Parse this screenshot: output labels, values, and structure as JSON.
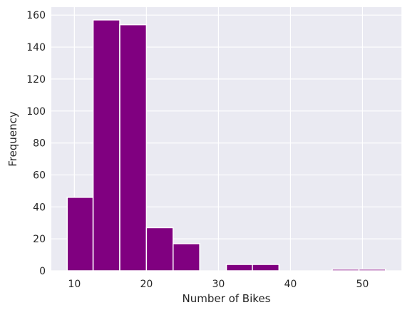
{
  "chart_data": {
    "type": "bar",
    "histogram": true,
    "title": "",
    "xlabel": "Number of Bikes",
    "ylabel": "Frequency",
    "bins": [
      {
        "start": 9.0,
        "end": 12.6,
        "value": 46
      },
      {
        "start": 12.6,
        "end": 16.3,
        "value": 157
      },
      {
        "start": 16.3,
        "end": 20.0,
        "value": 154
      },
      {
        "start": 20.0,
        "end": 23.7,
        "value": 27
      },
      {
        "start": 23.7,
        "end": 27.4,
        "value": 17
      },
      {
        "start": 27.4,
        "end": 31.1,
        "value": 0
      },
      {
        "start": 31.1,
        "end": 34.7,
        "value": 4
      },
      {
        "start": 34.7,
        "end": 38.4,
        "value": 4
      },
      {
        "start": 38.4,
        "end": 42.1,
        "value": 0
      },
      {
        "start": 42.1,
        "end": 45.8,
        "value": 0
      },
      {
        "start": 45.8,
        "end": 49.5,
        "value": 1
      },
      {
        "start": 49.5,
        "end": 53.2,
        "value": 1
      }
    ],
    "xlim": [
      6.8,
      55.4
    ],
    "ylim": [
      0,
      165
    ],
    "x_ticks": [
      10,
      20,
      30,
      40,
      50
    ],
    "y_ticks": [
      0,
      20,
      40,
      60,
      80,
      100,
      120,
      140,
      160
    ],
    "grid": true,
    "bar_color": "#800080",
    "plot_background": "#eaeaf2",
    "grid_color": "#ffffff"
  }
}
